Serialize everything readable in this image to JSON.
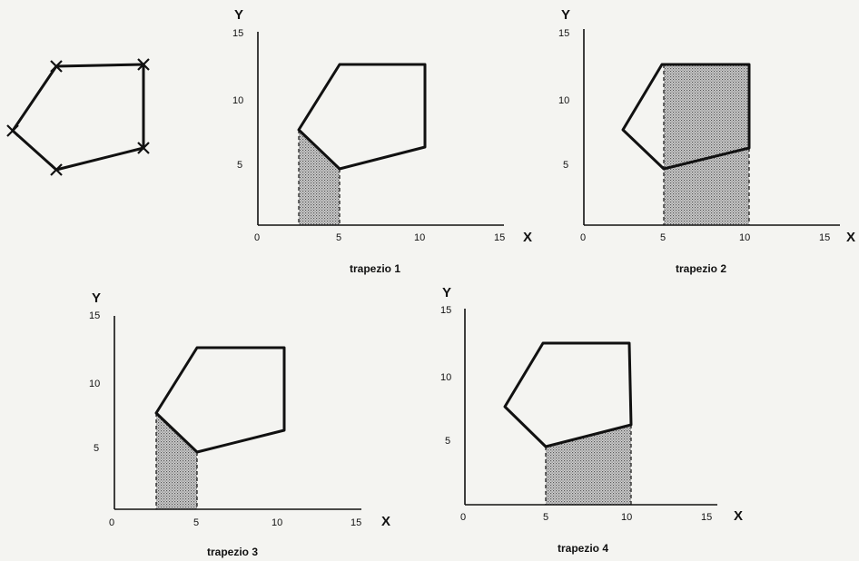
{
  "polygon": {
    "vertices": [
      [
        5,
        13
      ],
      [
        10,
        13
      ],
      [
        10,
        6.5
      ],
      [
        5,
        4.5
      ],
      [
        2.5,
        7.5
      ]
    ]
  },
  "axes": {
    "x_label": "X",
    "y_label": "Y",
    "x_ticks": [
      "0",
      "5",
      "10",
      "15"
    ],
    "y_ticks": [
      "5",
      "10",
      "15"
    ]
  },
  "panels": [
    {
      "caption": "trapezio 1",
      "edge": [
        [
          2.5,
          7.5
        ],
        [
          5,
          4.5
        ]
      ]
    },
    {
      "caption": "trapezio 2",
      "edge": [
        [
          5,
          4.5
        ],
        [
          10,
          6.5
        ]
      ]
    },
    {
      "caption": "trapezio 3",
      "edge": [
        [
          2.5,
          7.5
        ],
        [
          5,
          4.5
        ]
      ]
    },
    {
      "caption": "trapezio 4",
      "edge": [
        [
          5,
          4.5
        ],
        [
          10,
          6.5
        ]
      ]
    }
  ],
  "colors": {
    "ink": "#111111",
    "shade": "#a8a8a8",
    "background": "#f4f4f1"
  }
}
